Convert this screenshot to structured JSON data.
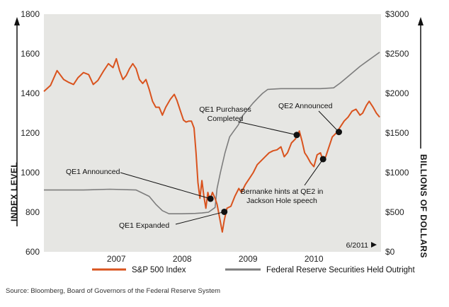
{
  "chart_data": {
    "type": "line",
    "left_axis": {
      "label": "INDEX LEVEL",
      "ticks": [
        "1800",
        "1600",
        "1400",
        "1200",
        "1000",
        "800",
        "600"
      ],
      "range": [
        600,
        1800
      ]
    },
    "right_axis": {
      "label": "BILLIONS OF DOLLARS",
      "ticks": [
        "$3000",
        "$2500",
        "$2000",
        "$1500",
        "$1000",
        "$500",
        "$0"
      ],
      "range": [
        0,
        3000
      ]
    },
    "x_ticks": [
      "2007",
      "2008",
      "2009",
      "2010"
    ],
    "x_range": [
      2006.4,
      2011.52
    ],
    "date_label": "6/2011",
    "grid": false,
    "legend_position": "bottom",
    "series": [
      {
        "name": "S&P 500 Index",
        "axis": "left",
        "color": "#d9531e",
        "points": [
          [
            2006.4,
            1410
          ],
          [
            2006.5,
            1440
          ],
          [
            2006.6,
            1515
          ],
          [
            2006.7,
            1470
          ],
          [
            2006.78,
            1455
          ],
          [
            2006.85,
            1445
          ],
          [
            2006.92,
            1480
          ],
          [
            2007.0,
            1505
          ],
          [
            2007.08,
            1495
          ],
          [
            2007.15,
            1445
          ],
          [
            2007.22,
            1465
          ],
          [
            2007.3,
            1510
          ],
          [
            2007.38,
            1550
          ],
          [
            2007.45,
            1530
          ],
          [
            2007.5,
            1575
          ],
          [
            2007.55,
            1515
          ],
          [
            2007.6,
            1470
          ],
          [
            2007.65,
            1490
          ],
          [
            2007.7,
            1525
          ],
          [
            2007.75,
            1550
          ],
          [
            2007.8,
            1525
          ],
          [
            2007.85,
            1470
          ],
          [
            2007.9,
            1450
          ],
          [
            2007.95,
            1470
          ],
          [
            2008.0,
            1420
          ],
          [
            2008.05,
            1360
          ],
          [
            2008.1,
            1330
          ],
          [
            2008.15,
            1330
          ],
          [
            2008.2,
            1290
          ],
          [
            2008.25,
            1330
          ],
          [
            2008.32,
            1370
          ],
          [
            2008.38,
            1395
          ],
          [
            2008.42,
            1365
          ],
          [
            2008.47,
            1315
          ],
          [
            2008.52,
            1265
          ],
          [
            2008.56,
            1255
          ],
          [
            2008.6,
            1260
          ],
          [
            2008.64,
            1260
          ],
          [
            2008.68,
            1225
          ],
          [
            2008.71,
            1100
          ],
          [
            2008.74,
            950
          ],
          [
            2008.77,
            870
          ],
          [
            2008.8,
            960
          ],
          [
            2008.83,
            880
          ],
          [
            2008.86,
            820
          ],
          [
            2008.89,
            900
          ],
          [
            2008.92,
            860
          ],
          [
            2008.96,
            900
          ],
          [
            2009.0,
            870
          ],
          [
            2009.03,
            840
          ],
          [
            2009.07,
            770
          ],
          [
            2009.11,
            700
          ],
          [
            2009.14,
            760
          ],
          [
            2009.18,
            820
          ],
          [
            2009.24,
            830
          ],
          [
            2009.3,
            880
          ],
          [
            2009.36,
            920
          ],
          [
            2009.4,
            900
          ],
          [
            2009.46,
            940
          ],
          [
            2009.52,
            970
          ],
          [
            2009.58,
            1000
          ],
          [
            2009.64,
            1040
          ],
          [
            2009.7,
            1060
          ],
          [
            2009.76,
            1080
          ],
          [
            2009.82,
            1100
          ],
          [
            2009.88,
            1110
          ],
          [
            2009.94,
            1115
          ],
          [
            2010.0,
            1130
          ],
          [
            2010.05,
            1080
          ],
          [
            2010.1,
            1100
          ],
          [
            2010.16,
            1150
          ],
          [
            2010.22,
            1170
          ],
          [
            2010.28,
            1210
          ],
          [
            2010.32,
            1160
          ],
          [
            2010.36,
            1100
          ],
          [
            2010.4,
            1080
          ],
          [
            2010.45,
            1050
          ],
          [
            2010.5,
            1030
          ],
          [
            2010.55,
            1090
          ],
          [
            2010.6,
            1100
          ],
          [
            2010.64,
            1060
          ],
          [
            2010.68,
            1080
          ],
          [
            2010.72,
            1120
          ],
          [
            2010.78,
            1180
          ],
          [
            2010.84,
            1200
          ],
          [
            2010.9,
            1230
          ],
          [
            2010.96,
            1260
          ],
          [
            2011.02,
            1280
          ],
          [
            2011.08,
            1310
          ],
          [
            2011.14,
            1320
          ],
          [
            2011.2,
            1290
          ],
          [
            2011.24,
            1300
          ],
          [
            2011.3,
            1340
          ],
          [
            2011.34,
            1360
          ],
          [
            2011.4,
            1330
          ],
          [
            2011.45,
            1300
          ],
          [
            2011.5,
            1280
          ]
        ]
      },
      {
        "name": "Federal Reserve Securities Held Outright",
        "axis": "right",
        "color": "#7d7d7d",
        "points": [
          [
            2006.4,
            780
          ],
          [
            2007.0,
            780
          ],
          [
            2007.4,
            790
          ],
          [
            2007.8,
            780
          ],
          [
            2007.9,
            740
          ],
          [
            2008.0,
            700
          ],
          [
            2008.1,
            600
          ],
          [
            2008.2,
            520
          ],
          [
            2008.3,
            480
          ],
          [
            2008.5,
            480
          ],
          [
            2008.7,
            485
          ],
          [
            2008.8,
            490
          ],
          [
            2008.9,
            500
          ],
          [
            2009.0,
            560
          ],
          [
            2009.03,
            800
          ],
          [
            2009.08,
            1000
          ],
          [
            2009.15,
            1250
          ],
          [
            2009.22,
            1450
          ],
          [
            2009.28,
            1520
          ],
          [
            2009.35,
            1600
          ],
          [
            2009.42,
            1720
          ],
          [
            2009.5,
            1800
          ],
          [
            2009.58,
            1880
          ],
          [
            2009.66,
            1950
          ],
          [
            2009.72,
            2000
          ],
          [
            2009.8,
            2050
          ],
          [
            2010.0,
            2060
          ],
          [
            2010.3,
            2060
          ],
          [
            2010.6,
            2060
          ],
          [
            2010.8,
            2070
          ],
          [
            2010.9,
            2130
          ],
          [
            2011.0,
            2200
          ],
          [
            2011.1,
            2270
          ],
          [
            2011.2,
            2340
          ],
          [
            2011.3,
            2400
          ],
          [
            2011.4,
            2460
          ],
          [
            2011.5,
            2520
          ]
        ]
      }
    ],
    "annotations": [
      {
        "lines": [
          "QE1 Announced"
        ],
        "date": 2008.93,
        "value": 868
      },
      {
        "lines": [
          "QE1 Expanded"
        ],
        "date": 2009.14,
        "value": 802
      },
      {
        "lines": [
          "QE1 Purchases",
          "Completed"
        ],
        "date": 2010.24,
        "value": 1190
      },
      {
        "lines": [
          "QE2 Announced"
        ],
        "date": 2010.88,
        "value": 1205
      },
      {
        "lines": [
          "Bernanke hints at QE2 in",
          "Jackson Hole speech"
        ],
        "date": 2010.64,
        "value": 1068
      }
    ]
  },
  "legend": [
    {
      "label": "S&P 500 Index",
      "color": "#d9531e"
    },
    {
      "label": "Federal Reserve Securities Held Outright",
      "color": "#7d7d7d"
    }
  ],
  "source": "Source:  Bloomberg, Board of Governors of the Federal Reserve System"
}
